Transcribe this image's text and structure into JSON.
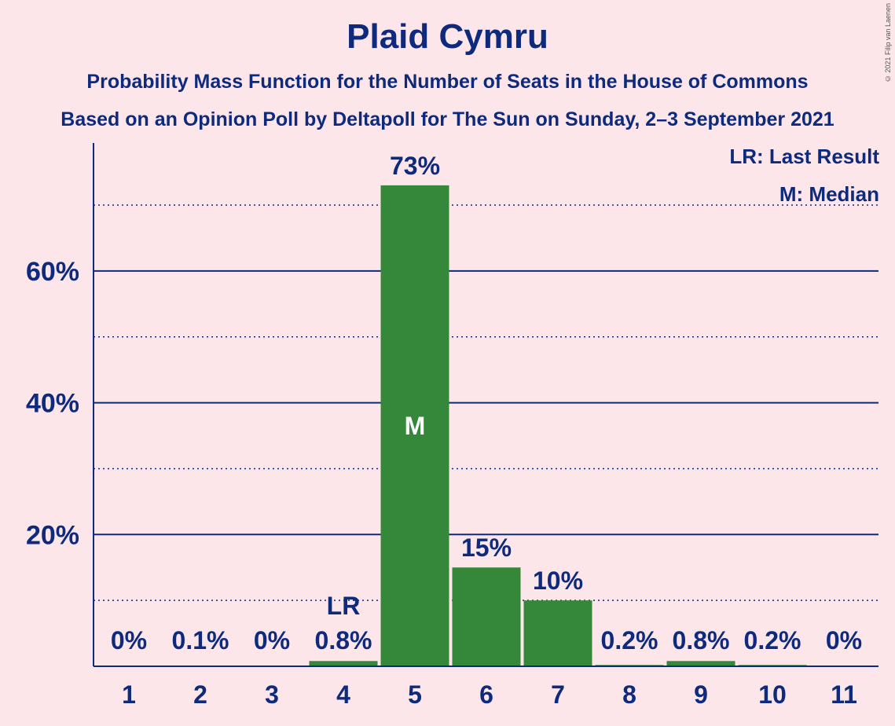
{
  "title": "Plaid Cymru",
  "subtitle_1": "Probability Mass Function for the Number of Seats in the House of Commons",
  "subtitle_2": "Based on an Opinion Poll by Deltapoll for The Sun on Sunday, 2–3 September 2021",
  "copyright": "© 2021 Filip van Laenen",
  "legend": {
    "last_result": "LR: Last Result",
    "median": "M: Median"
  },
  "chart_data": {
    "type": "bar",
    "categories": [
      "1",
      "2",
      "3",
      "4",
      "5",
      "6",
      "7",
      "8",
      "9",
      "10",
      "11"
    ],
    "values": [
      0,
      0.1,
      0,
      0.8,
      73,
      15,
      10,
      0.2,
      0.8,
      0.2,
      0
    ],
    "value_labels": [
      "0%",
      "0.1%",
      "0%",
      "0.8%",
      "73%",
      "15%",
      "10%",
      "0.2%",
      "0.8%",
      "0.2%",
      "0%"
    ],
    "ylim": [
      0,
      80
    ],
    "y_ticks": [
      20,
      40,
      60
    ],
    "y_tick_labels": [
      "20%",
      "40%",
      "60%"
    ],
    "y_minor_ticks": [
      10,
      30,
      50,
      70
    ],
    "last_result_category": "4",
    "last_result_label": "LR",
    "median_category": "5",
    "median_label": "M",
    "bar_color": "#35883a",
    "axis_color": "#0e2a7d"
  }
}
